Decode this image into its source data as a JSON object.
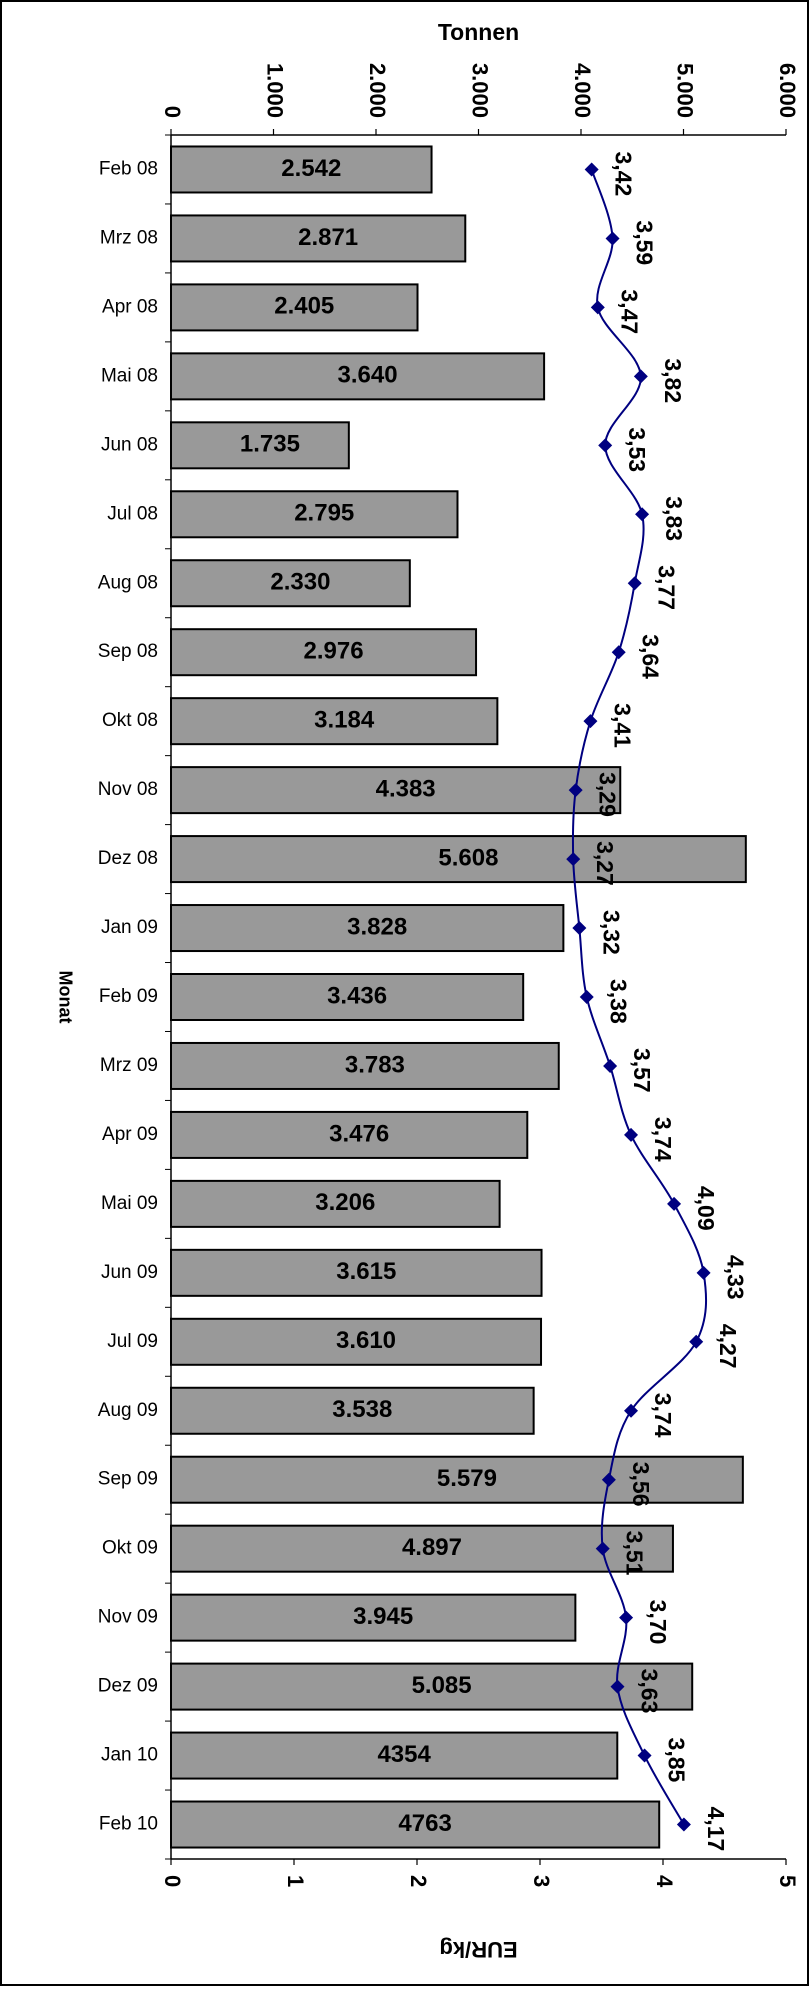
{
  "chart_data": {
    "type": "bar",
    "orientation": "horizontal",
    "title": "",
    "category_axis_label": "Monat",
    "categories": [
      "Feb 08",
      "Mrz 08",
      "Apr 08",
      "Mai 08",
      "Jun 08",
      "Jul 08",
      "Aug 08",
      "Sep 08",
      "Okt 08",
      "Nov 08",
      "Dez 08",
      "Jan 09",
      "Feb 09",
      "Mrz 09",
      "Apr 09",
      "Mai 09",
      "Jun 09",
      "Jul 09",
      "Aug 09",
      "Sep 09",
      "Okt 09",
      "Nov 09",
      "Dez 09",
      "Jan 10",
      "Feb 10"
    ],
    "bar_series": {
      "axis_label": "Tonnen",
      "axis_position": "top",
      "range": [
        0,
        6000
      ],
      "tick_values": [
        0,
        1000,
        2000,
        3000,
        4000,
        5000,
        6000
      ],
      "tick_labels": [
        "0",
        "1.000",
        "2.000",
        "3.000",
        "4.000",
        "5.000",
        "6.000"
      ],
      "values": [
        2542,
        2871,
        2405,
        3640,
        1735,
        2795,
        2330,
        2976,
        3184,
        4383,
        5608,
        3828,
        3436,
        3783,
        3476,
        3206,
        3615,
        3610,
        3538,
        5579,
        4897,
        3945,
        5085,
        4354,
        4763
      ],
      "value_labels": [
        "2.542",
        "2.871",
        "2.405",
        "3.640",
        "1.735",
        "2.795",
        "2.330",
        "2.976",
        "3.184",
        "4.383",
        "5.608",
        "3.828",
        "3.436",
        "3.783",
        "3.476",
        "3.206",
        "3.615",
        "3.610",
        "3.538",
        "5.579",
        "4.897",
        "3.945",
        "5.085",
        "4354",
        "4763"
      ],
      "color": "#999999"
    },
    "line_series": {
      "axis_label": "EUR/kg",
      "axis_position": "bottom",
      "range": [
        0,
        5
      ],
      "tick_values": [
        0,
        1,
        2,
        3,
        4,
        5
      ],
      "tick_labels": [
        "0",
        "1",
        "2",
        "3",
        "4",
        "5"
      ],
      "values": [
        3.42,
        3.59,
        3.47,
        3.82,
        3.53,
        3.83,
        3.77,
        3.64,
        3.41,
        3.29,
        3.27,
        3.32,
        3.38,
        3.57,
        3.74,
        4.09,
        4.33,
        4.27,
        3.74,
        3.56,
        3.51,
        3.7,
        3.63,
        3.85,
        4.17
      ],
      "value_labels": [
        "3,42",
        "3,59",
        "3,47",
        "3,82",
        "3,53",
        "3,83",
        "3,77",
        "3,64",
        "3,41",
        "3,29",
        "3,27",
        "3,32",
        "3,38",
        "3,57",
        "3,74",
        "4,09",
        "4,33",
        "4,27",
        "3,74",
        "3,56",
        "3,51",
        "3,70",
        "3,63",
        "3,85",
        "4,17"
      ],
      "color": "#000080",
      "marker": "diamond"
    },
    "grid": false,
    "legend": "none"
  }
}
